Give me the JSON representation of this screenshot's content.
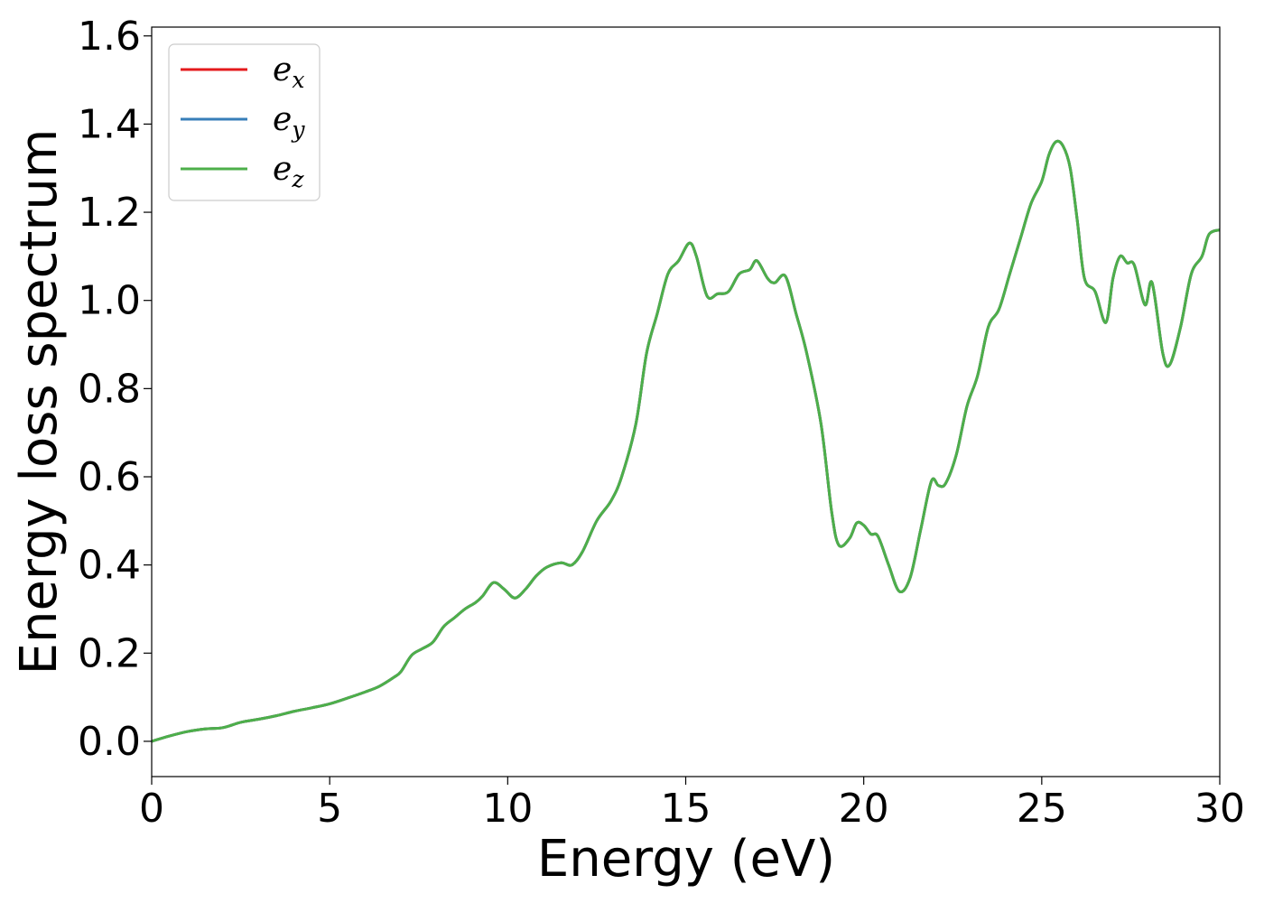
{
  "chart_data": {
    "type": "line",
    "title": "",
    "xlabel": "Energy (eV)",
    "ylabel": "Energy loss spectrum",
    "xlim": [
      0,
      30
    ],
    "ylim": [
      -0.08,
      1.62
    ],
    "xticks": [
      "0",
      "5",
      "10",
      "15",
      "20",
      "25",
      "30"
    ],
    "yticks": [
      "0.0",
      "0.2",
      "0.4",
      "0.6",
      "0.8",
      "1.0",
      "1.2",
      "1.4",
      "1.6"
    ],
    "grid": false,
    "legend_position": "top-left",
    "x": [
      0,
      0.5,
      1.0,
      1.5,
      2.0,
      2.5,
      3.0,
      3.5,
      4.0,
      4.5,
      5.0,
      5.5,
      6.0,
      6.4,
      6.8,
      7.0,
      7.3,
      7.6,
      7.9,
      8.2,
      8.5,
      8.8,
      9.1,
      9.3,
      9.6,
      9.9,
      10.2,
      10.5,
      10.8,
      11.1,
      11.5,
      11.8,
      12.1,
      12.5,
      12.9,
      13.2,
      13.6,
      13.9,
      14.2,
      14.5,
      14.8,
      15.1,
      15.3,
      15.6,
      15.9,
      16.2,
      16.5,
      16.8,
      17.0,
      17.3,
      17.5,
      17.8,
      18.1,
      18.4,
      18.8,
      19.1,
      19.3,
      19.6,
      19.8,
      20.0,
      20.2,
      20.4,
      20.7,
      21.0,
      21.3,
      21.6,
      21.9,
      22.1,
      22.3,
      22.6,
      22.9,
      23.2,
      23.5,
      23.8,
      24.1,
      24.4,
      24.7,
      25.0,
      25.2,
      25.4,
      25.6,
      25.8,
      26.0,
      26.2,
      26.5,
      26.8,
      27.0,
      27.2,
      27.4,
      27.6,
      27.9,
      28.1,
      28.4,
      28.6,
      28.9,
      29.2,
      29.5,
      29.7,
      30.0
    ],
    "series": [
      {
        "name": "e",
        "subscript": "x",
        "color": "#e41a1c",
        "values": [
          0.0,
          0.012,
          0.022,
          0.028,
          0.031,
          0.043,
          0.05,
          0.058,
          0.068,
          0.076,
          0.085,
          0.098,
          0.112,
          0.125,
          0.145,
          0.158,
          0.195,
          0.21,
          0.225,
          0.26,
          0.28,
          0.3,
          0.315,
          0.33,
          0.36,
          0.345,
          0.325,
          0.345,
          0.375,
          0.395,
          0.405,
          0.4,
          0.43,
          0.5,
          0.545,
          0.6,
          0.72,
          0.88,
          0.97,
          1.06,
          1.09,
          1.13,
          1.1,
          1.01,
          1.015,
          1.02,
          1.06,
          1.07,
          1.09,
          1.05,
          1.04,
          1.055,
          0.97,
          0.88,
          0.72,
          0.52,
          0.445,
          0.46,
          0.495,
          0.49,
          0.47,
          0.465,
          0.4,
          0.34,
          0.37,
          0.48,
          0.59,
          0.58,
          0.585,
          0.65,
          0.76,
          0.83,
          0.94,
          0.98,
          1.06,
          1.14,
          1.22,
          1.27,
          1.33,
          1.36,
          1.35,
          1.3,
          1.18,
          1.05,
          1.02,
          0.95,
          1.05,
          1.1,
          1.085,
          1.08,
          0.99,
          1.04,
          0.88,
          0.855,
          0.94,
          1.06,
          1.1,
          1.15,
          1.16
        ]
      },
      {
        "name": "e",
        "subscript": "y",
        "color": "#377eb8",
        "values": [
          0.0,
          0.012,
          0.022,
          0.028,
          0.031,
          0.043,
          0.05,
          0.058,
          0.068,
          0.076,
          0.085,
          0.098,
          0.112,
          0.125,
          0.145,
          0.158,
          0.195,
          0.21,
          0.225,
          0.26,
          0.28,
          0.3,
          0.315,
          0.33,
          0.36,
          0.345,
          0.325,
          0.345,
          0.375,
          0.395,
          0.405,
          0.4,
          0.43,
          0.5,
          0.545,
          0.6,
          0.72,
          0.88,
          0.97,
          1.06,
          1.09,
          1.13,
          1.1,
          1.01,
          1.015,
          1.02,
          1.06,
          1.07,
          1.09,
          1.05,
          1.04,
          1.055,
          0.97,
          0.88,
          0.72,
          0.52,
          0.445,
          0.46,
          0.495,
          0.49,
          0.47,
          0.465,
          0.4,
          0.34,
          0.37,
          0.48,
          0.59,
          0.58,
          0.585,
          0.65,
          0.76,
          0.83,
          0.94,
          0.98,
          1.06,
          1.14,
          1.22,
          1.27,
          1.33,
          1.36,
          1.35,
          1.3,
          1.18,
          1.05,
          1.02,
          0.95,
          1.05,
          1.1,
          1.085,
          1.08,
          0.99,
          1.04,
          0.88,
          0.855,
          0.94,
          1.06,
          1.1,
          1.15,
          1.16
        ]
      },
      {
        "name": "e",
        "subscript": "z",
        "color": "#4daf4a",
        "values": [
          0.0,
          0.012,
          0.022,
          0.028,
          0.031,
          0.043,
          0.05,
          0.058,
          0.068,
          0.076,
          0.085,
          0.098,
          0.112,
          0.125,
          0.145,
          0.158,
          0.195,
          0.21,
          0.225,
          0.26,
          0.28,
          0.3,
          0.315,
          0.33,
          0.36,
          0.345,
          0.325,
          0.345,
          0.375,
          0.395,
          0.405,
          0.4,
          0.43,
          0.5,
          0.545,
          0.6,
          0.72,
          0.88,
          0.97,
          1.06,
          1.09,
          1.13,
          1.1,
          1.01,
          1.015,
          1.02,
          1.06,
          1.07,
          1.09,
          1.05,
          1.04,
          1.055,
          0.97,
          0.88,
          0.72,
          0.52,
          0.445,
          0.46,
          0.495,
          0.49,
          0.47,
          0.465,
          0.4,
          0.34,
          0.37,
          0.48,
          0.59,
          0.58,
          0.585,
          0.65,
          0.76,
          0.83,
          0.94,
          0.98,
          1.06,
          1.14,
          1.22,
          1.27,
          1.33,
          1.36,
          1.35,
          1.3,
          1.18,
          1.05,
          1.02,
          0.95,
          1.05,
          1.1,
          1.085,
          1.08,
          0.99,
          1.04,
          0.88,
          0.855,
          0.94,
          1.06,
          1.1,
          1.15,
          1.16
        ]
      }
    ]
  }
}
